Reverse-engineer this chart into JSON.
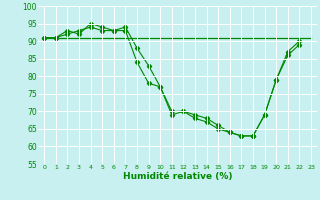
{
  "xlabel": "Humidité relative (%)",
  "background_color": "#c8f0f0",
  "grid_color": "#ffffff",
  "line_color": "#008800",
  "xlim": [
    -0.5,
    23.5
  ],
  "ylim": [
    55,
    100
  ],
  "yticks": [
    55,
    60,
    65,
    70,
    75,
    80,
    85,
    90,
    95,
    100
  ],
  "xticks": [
    0,
    1,
    2,
    3,
    4,
    5,
    6,
    7,
    8,
    9,
    10,
    11,
    12,
    13,
    14,
    15,
    16,
    17,
    18,
    19,
    20,
    21,
    22,
    23
  ],
  "xtick_labels": [
    "0",
    "1",
    "2",
    "3",
    "4",
    "5",
    "6",
    "7",
    "8",
    "9",
    "10",
    "11",
    "12",
    "13",
    "14",
    "15",
    "16",
    "17",
    "18",
    "19",
    "20",
    "21",
    "22",
    "23"
  ],
  "series": [
    {
      "x": [
        0,
        1,
        2,
        3,
        4,
        5,
        6,
        7,
        8,
        9,
        10,
        11,
        12,
        13,
        14,
        15,
        16,
        17,
        18,
        19,
        20,
        21,
        22,
        23
      ],
      "y": [
        91,
        91,
        91,
        91,
        91,
        91,
        91,
        91,
        91,
        91,
        91,
        91,
        91,
        91,
        91,
        91,
        91,
        91,
        91,
        91,
        91,
        91,
        91,
        91
      ]
    },
    {
      "x": [
        0,
        1,
        2,
        3,
        4,
        5,
        6,
        7,
        8,
        9,
        10,
        11,
        12,
        13,
        14,
        15,
        16,
        17,
        18,
        19,
        20,
        21,
        22
      ],
      "y": [
        91,
        91,
        93,
        92,
        95,
        94,
        93,
        94,
        88,
        83,
        77,
        69,
        70,
        69,
        68,
        66,
        64,
        63,
        63,
        69,
        79,
        87,
        90
      ]
    },
    {
      "x": [
        0,
        1,
        2,
        3,
        4,
        5,
        6,
        7,
        8,
        9,
        10,
        11,
        12,
        13,
        14,
        15,
        16,
        17,
        18,
        19,
        20,
        21,
        22
      ],
      "y": [
        91,
        91,
        92,
        93,
        94,
        93,
        93,
        93,
        84,
        78,
        77,
        70,
        70,
        68,
        67,
        65,
        64,
        63,
        63,
        69,
        79,
        86,
        89
      ]
    }
  ]
}
